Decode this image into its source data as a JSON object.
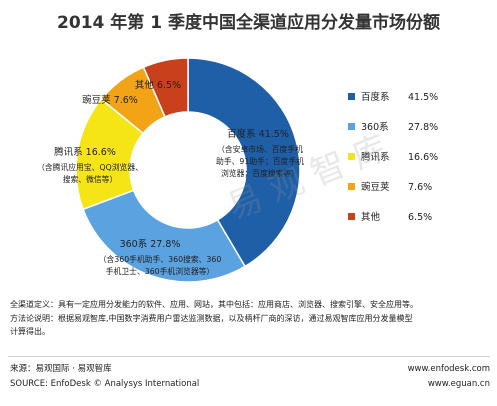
{
  "chart_data": {
    "type": "pie",
    "style": "donut",
    "title": "2014 年第 1 季度中国全渠道应用分发量市场份额",
    "legend_position": "right",
    "segments": [
      {
        "name": "百度系",
        "value": 41.5,
        "value_label": "41.5%",
        "color": "#1f5fa8",
        "inner_label": "百度系  41.5%",
        "note": [
          "（含安卓市场、百度手机",
          "助手、91助手；百度手机",
          "浏览器；百度搜索等）"
        ]
      },
      {
        "name": "360系",
        "value": 27.8,
        "value_label": "27.8%",
        "color": "#5aa2e0",
        "inner_label": "360系  27.8%",
        "note": [
          "（含360手机助手、360搜索、360",
          "手机卫士、360手机浏览器等）"
        ]
      },
      {
        "name": "腾讯系",
        "value": 16.6,
        "value_label": "16.6%",
        "color": "#f6e516",
        "inner_label": "腾讯系  16.6%",
        "note": [
          "（含腾讯应用宝、QQ浏览器、",
          "搜索、微信等）"
        ]
      },
      {
        "name": "豌豆荚",
        "value": 7.6,
        "value_label": "7.6%",
        "color": "#f2a316",
        "inner_label": "豌豆荚  7.6%",
        "note": []
      },
      {
        "name": "其他",
        "value": 6.5,
        "value_label": "6.5%",
        "color": "#c8401c",
        "inner_label": "其他  6.5%",
        "note": []
      }
    ]
  },
  "watermark": "易 观 智 库",
  "notes": [
    "全渠道定义：具有一定应用分发能力的软件、应用、网站，其中包括：应用商店、浏览器、搜索引擎、安全应用等。",
    "方法论说明：根据易观智库,中国数字消费用户雷达监测数据，以及柄杆厂商的深访，通过易观智库应用分发量模型",
    "计算得出。"
  ],
  "footer": {
    "source_cn": "来源：易观国际 · 易观智库",
    "url1": "www.enfodesk.com",
    "source_en": "SOURCE: EnfoDesk © Analysys International",
    "url2": "www.eguan.cn"
  }
}
